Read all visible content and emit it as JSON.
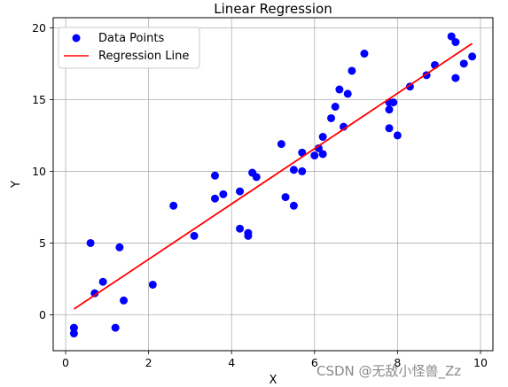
{
  "chart_data": {
    "type": "scatter",
    "title": "Linear Regression",
    "xlabel": "X",
    "ylabel": "Y",
    "xlim": [
      -0.3,
      10.3
    ],
    "ylim": [
      -2.5,
      20.7
    ],
    "xticks": [
      0,
      2,
      4,
      6,
      8,
      10
    ],
    "yticks": [
      0,
      5,
      10,
      15,
      20
    ],
    "grid": true,
    "legend_position": "top-left",
    "series": [
      {
        "name": "Data Points",
        "kind": "scatter",
        "color": "#0000ff",
        "points": [
          [
            0.2,
            -0.9
          ],
          [
            0.2,
            -1.3
          ],
          [
            0.6,
            5.0
          ],
          [
            0.7,
            1.5
          ],
          [
            0.9,
            2.3
          ],
          [
            1.2,
            -0.9
          ],
          [
            1.3,
            4.7
          ],
          [
            1.4,
            1.0
          ],
          [
            2.1,
            2.1
          ],
          [
            2.6,
            7.6
          ],
          [
            3.1,
            5.5
          ],
          [
            3.6,
            8.1
          ],
          [
            3.6,
            9.7
          ],
          [
            3.8,
            8.4
          ],
          [
            4.2,
            8.6
          ],
          [
            4.2,
            6.0
          ],
          [
            4.4,
            5.7
          ],
          [
            4.4,
            5.5
          ],
          [
            4.5,
            9.9
          ],
          [
            4.6,
            9.6
          ],
          [
            5.2,
            11.9
          ],
          [
            5.3,
            8.2
          ],
          [
            5.5,
            10.1
          ],
          [
            5.5,
            7.6
          ],
          [
            5.7,
            10.0
          ],
          [
            5.7,
            11.3
          ],
          [
            6.0,
            11.1
          ],
          [
            6.1,
            11.6
          ],
          [
            6.2,
            12.4
          ],
          [
            6.2,
            11.2
          ],
          [
            6.4,
            13.7
          ],
          [
            6.5,
            14.5
          ],
          [
            6.6,
            15.7
          ],
          [
            6.7,
            13.1
          ],
          [
            6.8,
            15.4
          ],
          [
            6.9,
            17.0
          ],
          [
            7.2,
            18.2
          ],
          [
            7.8,
            13.0
          ],
          [
            7.8,
            14.3
          ],
          [
            7.8,
            14.8
          ],
          [
            7.9,
            14.8
          ],
          [
            8.0,
            12.5
          ],
          [
            8.3,
            15.9
          ],
          [
            8.7,
            16.7
          ],
          [
            8.9,
            17.4
          ],
          [
            9.3,
            19.4
          ],
          [
            9.4,
            19.0
          ],
          [
            9.4,
            16.5
          ],
          [
            9.6,
            17.5
          ],
          [
            9.8,
            18.0
          ]
        ]
      },
      {
        "name": "Regression Line",
        "kind": "line",
        "color": "#ff0000",
        "points": [
          [
            0.2,
            0.4
          ],
          [
            9.8,
            18.9
          ]
        ]
      }
    ]
  },
  "watermark": "CSDN @无敌小怪兽_Zz"
}
